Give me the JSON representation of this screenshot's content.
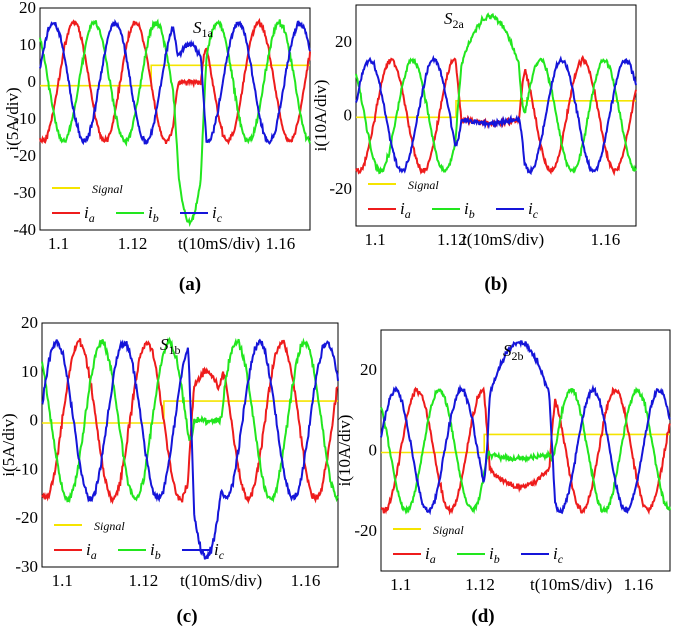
{
  "colors": {
    "signal": "#f5e400",
    "ia": "#ee1c1c",
    "ib": "#22e61e",
    "ic": "#1515d9"
  },
  "chart_data": [
    {
      "type": "line",
      "caption": "(a)",
      "title": "S",
      "title_sub": "1a",
      "ylabel": "i(5A/div)",
      "xlabel": "t(10mS/div)",
      "ylim": [
        -40,
        20
      ],
      "yticks": [
        20,
        10,
        0,
        -10,
        -20,
        -30,
        -40
      ],
      "xlim": [
        1.095,
        1.168
      ],
      "xticks": [
        "1.1",
        "1.12",
        "1.16"
      ],
      "xtick_values": [
        1.1,
        1.12,
        1.16
      ],
      "legend": [
        "Signal",
        "ia",
        "ib",
        "ic"
      ],
      "series": [
        {
          "name": "Signal",
          "fault_step": [
            1.125,
            -1,
            4.5
          ]
        },
        {
          "name": "ia",
          "amplitude": 16,
          "phase_deg": 0,
          "fault": [
            1.131,
            1.14,
            0
          ]
        },
        {
          "name": "ib",
          "amplitude": 16,
          "phase_deg": -120,
          "fault": [
            1.131,
            1.14,
            -38
          ]
        },
        {
          "name": "ic",
          "amplitude": 16,
          "phase_deg": 120,
          "fault": [
            1.131,
            1.14,
            10
          ]
        }
      ]
    },
    {
      "type": "line",
      "caption": "(b)",
      "title": "S",
      "title_sub": "2a",
      "ylabel": "i(10A/div)",
      "xlabel": "t(10mS/div)",
      "ylim": [
        -30,
        30
      ],
      "yticks": [
        20,
        0,
        -20
      ],
      "xlim": [
        1.095,
        1.168
      ],
      "xticks": [
        "1.1",
        "1.12",
        "1.16"
      ],
      "xtick_values": [
        1.1,
        1.12,
        1.16
      ],
      "legend": [
        "Signal",
        "ia",
        "ib",
        "ic"
      ],
      "series": [
        {
          "name": "Signal",
          "fault_step": [
            1.121,
            -0.5,
            4
          ]
        },
        {
          "name": "ia",
          "amplitude": 15,
          "phase_deg": 0,
          "fault": [
            1.121,
            1.139,
            -2
          ]
        },
        {
          "name": "ib",
          "amplitude": 15,
          "phase_deg": -120,
          "fault": [
            1.121,
            1.139,
            27
          ]
        },
        {
          "name": "ic",
          "amplitude": 15,
          "phase_deg": 120,
          "fault": [
            1.121,
            1.139,
            -2
          ]
        }
      ]
    },
    {
      "type": "line",
      "caption": "(c)",
      "title": "S",
      "title_sub": "1b",
      "ylabel": "i(5A/div)",
      "xlabel": "t(10mS/div)",
      "ylim": [
        -30,
        20
      ],
      "yticks": [
        20,
        10,
        0,
        -10,
        -20,
        -30
      ],
      "xlim": [
        1.095,
        1.168
      ],
      "xticks": [
        "1.1",
        "1.12",
        "1.16"
      ],
      "xtick_values": [
        1.1,
        1.12,
        1.16
      ],
      "legend": [
        "Signal",
        "ia",
        "ib",
        "ic"
      ],
      "series": [
        {
          "name": "Signal",
          "fault_step": [
            1.125,
            -0.5,
            4
          ]
        },
        {
          "name": "ia",
          "amplitude": 16,
          "phase_deg": 0,
          "fault": [
            1.131,
            1.14,
            10
          ]
        },
        {
          "name": "ib",
          "amplitude": 16,
          "phase_deg": -120,
          "fault": [
            1.131,
            1.14,
            0
          ]
        },
        {
          "name": "ic",
          "amplitude": 16,
          "phase_deg": 120,
          "fault": [
            1.131,
            1.14,
            -28
          ]
        }
      ]
    },
    {
      "type": "line",
      "caption": "(d)",
      "title": "S",
      "title_sub": "2b",
      "ylabel": "i(10A/div)",
      "xlabel": "t(10mS/div)",
      "ylim": [
        -30,
        30
      ],
      "yticks": [
        20,
        0,
        -20
      ],
      "xlim": [
        1.095,
        1.168
      ],
      "xticks": [
        "1.1",
        "1.12",
        "1.16"
      ],
      "xtick_values": [
        1.1,
        1.12,
        1.16
      ],
      "legend": [
        "Signal",
        "ia",
        "ib",
        "ic"
      ],
      "series": [
        {
          "name": "Signal",
          "fault_step": [
            1.121,
            -0.5,
            4
          ]
        },
        {
          "name": "ia",
          "amplitude": 15,
          "phase_deg": 0,
          "fault": [
            1.121,
            1.139,
            -9
          ]
        },
        {
          "name": "ib",
          "amplitude": 15,
          "phase_deg": -120,
          "fault": [
            1.121,
            1.139,
            -2
          ]
        },
        {
          "name": "ic",
          "amplitude": 15,
          "phase_deg": 120,
          "fault": [
            1.121,
            1.139,
            27
          ]
        }
      ]
    }
  ]
}
